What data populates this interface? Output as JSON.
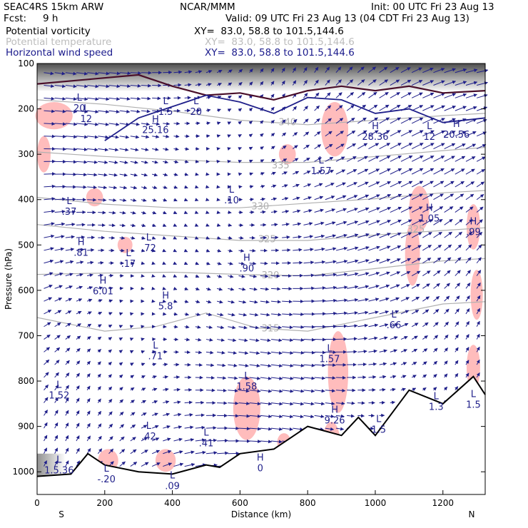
{
  "header": {
    "model": "SEAC4RS 15km ARW",
    "org": "NCAR/MMM",
    "init": "Init: 00 UTC Fri 23 Aug 13",
    "fcst_label": "Fcst:",
    "fcst_value": "9 h",
    "valid": "Valid: 09 UTC Fri 23 Aug 13 (04 CDT Fri 23 Aug 13)",
    "fields": [
      {
        "name": "Potential vorticity",
        "xy": "XY=  83.0, 58.8 to 101.5,144.6",
        "color": "#000000"
      },
      {
        "name": "Potential temperature",
        "xy": "XY=  83.0, 58.8 to 101.5,144.6",
        "color": "#bdbdbd"
      },
      {
        "name": "Horizontal wind speed",
        "xy": "XY=  83.0, 58.8 to 101.5,144.6",
        "color": "#1a1a8c"
      }
    ]
  },
  "chart_data": {
    "type": "cross-section",
    "xlabel": "Distance (km)",
    "ylabel": "Pressure (hPa)",
    "x_ticks": [
      0,
      200,
      400,
      600,
      800,
      1000,
      1200
    ],
    "y_ticks": [
      100,
      200,
      300,
      400,
      500,
      600,
      700,
      800,
      900,
      1000
    ],
    "xlim": [
      0,
      1325
    ],
    "ylim": [
      100,
      1050
    ],
    "y_direction": "inverted",
    "end_labels": {
      "left": "S",
      "right": "N"
    },
    "colors": {
      "pv": "#4a0f2a",
      "theta": "#b0b0b0",
      "wind": "#1f1f8a",
      "pv_fill": "#ffb0b0",
      "terrain": "#000000"
    },
    "theta_contours": [
      {
        "label": "340",
        "x": 740,
        "p": 230,
        "points": [
          [
            0,
            180
          ],
          [
            200,
            190
          ],
          [
            400,
            205
          ],
          [
            600,
            225
          ],
          [
            800,
            235
          ],
          [
            1000,
            225
          ],
          [
            1200,
            215
          ],
          [
            1325,
            210
          ]
        ]
      },
      {
        "label": "335",
        "x": 720,
        "p": 325,
        "points": [
          [
            0,
            295
          ],
          [
            200,
            305
          ],
          [
            400,
            312
          ],
          [
            600,
            318
          ],
          [
            800,
            318
          ],
          [
            1000,
            305
          ],
          [
            1200,
            292
          ],
          [
            1325,
            285
          ]
        ]
      },
      {
        "label": "330",
        "x": 660,
        "p": 415,
        "points": [
          [
            0,
            395
          ],
          [
            200,
            410
          ],
          [
            400,
            418
          ],
          [
            600,
            418
          ],
          [
            800,
            408
          ],
          [
            1000,
            398
          ],
          [
            1200,
            385
          ],
          [
            1325,
            380
          ]
        ]
      },
      {
        "label": "325",
        "x": 680,
        "p": 488,
        "points": [
          [
            0,
            455
          ],
          [
            200,
            470
          ],
          [
            400,
            480
          ],
          [
            600,
            490
          ],
          [
            800,
            490
          ],
          [
            1000,
            478
          ],
          [
            1200,
            468
          ],
          [
            1325,
            462
          ]
        ]
      },
      {
        "label": "325",
        "x": 1120,
        "p": 466,
        "points": []
      },
      {
        "label": "320",
        "x": 690,
        "p": 567,
        "points": [
          [
            0,
            565
          ],
          [
            200,
            562
          ],
          [
            400,
            560
          ],
          [
            600,
            565
          ],
          [
            800,
            568
          ],
          [
            1000,
            552
          ],
          [
            1200,
            535
          ],
          [
            1325,
            530
          ]
        ]
      },
      {
        "label": "315",
        "x": 690,
        "p": 684,
        "points": [
          [
            0,
            660
          ],
          [
            200,
            690
          ],
          [
            350,
            680
          ],
          [
            500,
            650
          ],
          [
            650,
            683
          ],
          [
            800,
            690
          ],
          [
            1000,
            660
          ],
          [
            1200,
            630
          ],
          [
            1325,
            625
          ]
        ]
      }
    ],
    "terrain_surface": [
      [
        0,
        1010
      ],
      [
        100,
        1005
      ],
      [
        150,
        960
      ],
      [
        200,
        985
      ],
      [
        300,
        1000
      ],
      [
        400,
        1005
      ],
      [
        500,
        985
      ],
      [
        540,
        990
      ],
      [
        600,
        960
      ],
      [
        700,
        950
      ],
      [
        800,
        900
      ],
      [
        900,
        920
      ],
      [
        950,
        880
      ],
      [
        1000,
        920
      ],
      [
        1100,
        820
      ],
      [
        1200,
        850
      ],
      [
        1290,
        790
      ],
      [
        1325,
        830
      ]
    ],
    "extrema": [
      {
        "t": "L",
        "v": "20",
        "x": 125,
        "p": 182
      },
      {
        "t": "L",
        "v": "12",
        "x": 145,
        "p": 205
      },
      {
        "t": "H",
        "v": "25.16",
        "x": 350,
        "p": 230
      },
      {
        "t": "L",
        "v": "1.5",
        "x": 380,
        "p": 190
      },
      {
        "t": "L",
        "v": "20",
        "x": 470,
        "p": 190
      },
      {
        "t": "L",
        "v": "1.57",
        "x": 840,
        "p": 320
      },
      {
        "t": "H",
        "v": "28.36",
        "x": 1000,
        "p": 245
      },
      {
        "t": "L",
        "v": "12",
        "x": 1160,
        "p": 245
      },
      {
        "t": "H",
        "v": "20.56",
        "x": 1240,
        "p": 240
      },
      {
        "t": "L",
        "v": ".37",
        "x": 95,
        "p": 410
      },
      {
        "t": "L",
        "v": ".10",
        "x": 575,
        "p": 385
      },
      {
        "t": "H",
        "v": "1.05",
        "x": 1160,
        "p": 425
      },
      {
        "t": "H",
        "v": ".99",
        "x": 1290,
        "p": 455
      },
      {
        "t": "H",
        "v": ".81",
        "x": 130,
        "p": 500
      },
      {
        "t": "L",
        "v": ".72",
        "x": 330,
        "p": 490
      },
      {
        "t": "L",
        "v": ".17",
        "x": 270,
        "p": 525
      },
      {
        "t": "H",
        "v": ".90",
        "x": 620,
        "p": 535
      },
      {
        "t": "H",
        "v": "6.01",
        "x": 195,
        "p": 585
      },
      {
        "t": "H",
        "v": "5.8",
        "x": 380,
        "p": 618
      },
      {
        "t": "L",
        "v": ".66",
        "x": 1055,
        "p": 660
      },
      {
        "t": "L",
        "v": ".71",
        "x": 350,
        "p": 728
      },
      {
        "t": "L",
        "v": "1.57",
        "x": 865,
        "p": 735
      },
      {
        "t": "L",
        "v": "1.52",
        "x": 65,
        "p": 815
      },
      {
        "t": "L",
        "v": "1.58",
        "x": 620,
        "p": 795
      },
      {
        "t": "H",
        "v": "9.26",
        "x": 880,
        "p": 870
      },
      {
        "t": "L",
        "v": "1.5",
        "x": 1010,
        "p": 890
      },
      {
        "t": "L",
        "v": "1.3",
        "x": 1180,
        "p": 840
      },
      {
        "t": "L",
        "v": "1.5",
        "x": 1290,
        "p": 835
      },
      {
        "t": "L",
        "v": ".42",
        "x": 330,
        "p": 905
      },
      {
        "t": "L",
        "v": ".41",
        "x": 500,
        "p": 920
      },
      {
        "t": "L",
        "v": "1.5.36",
        "x": 65,
        "p": 980
      },
      {
        "t": "L",
        "v": "-.20",
        "x": 205,
        "p": 1000
      },
      {
        "t": "L",
        "v": ".09",
        "x": 400,
        "p": 1015
      },
      {
        "t": "H",
        "v": "0",
        "x": 660,
        "p": 975
      }
    ]
  }
}
